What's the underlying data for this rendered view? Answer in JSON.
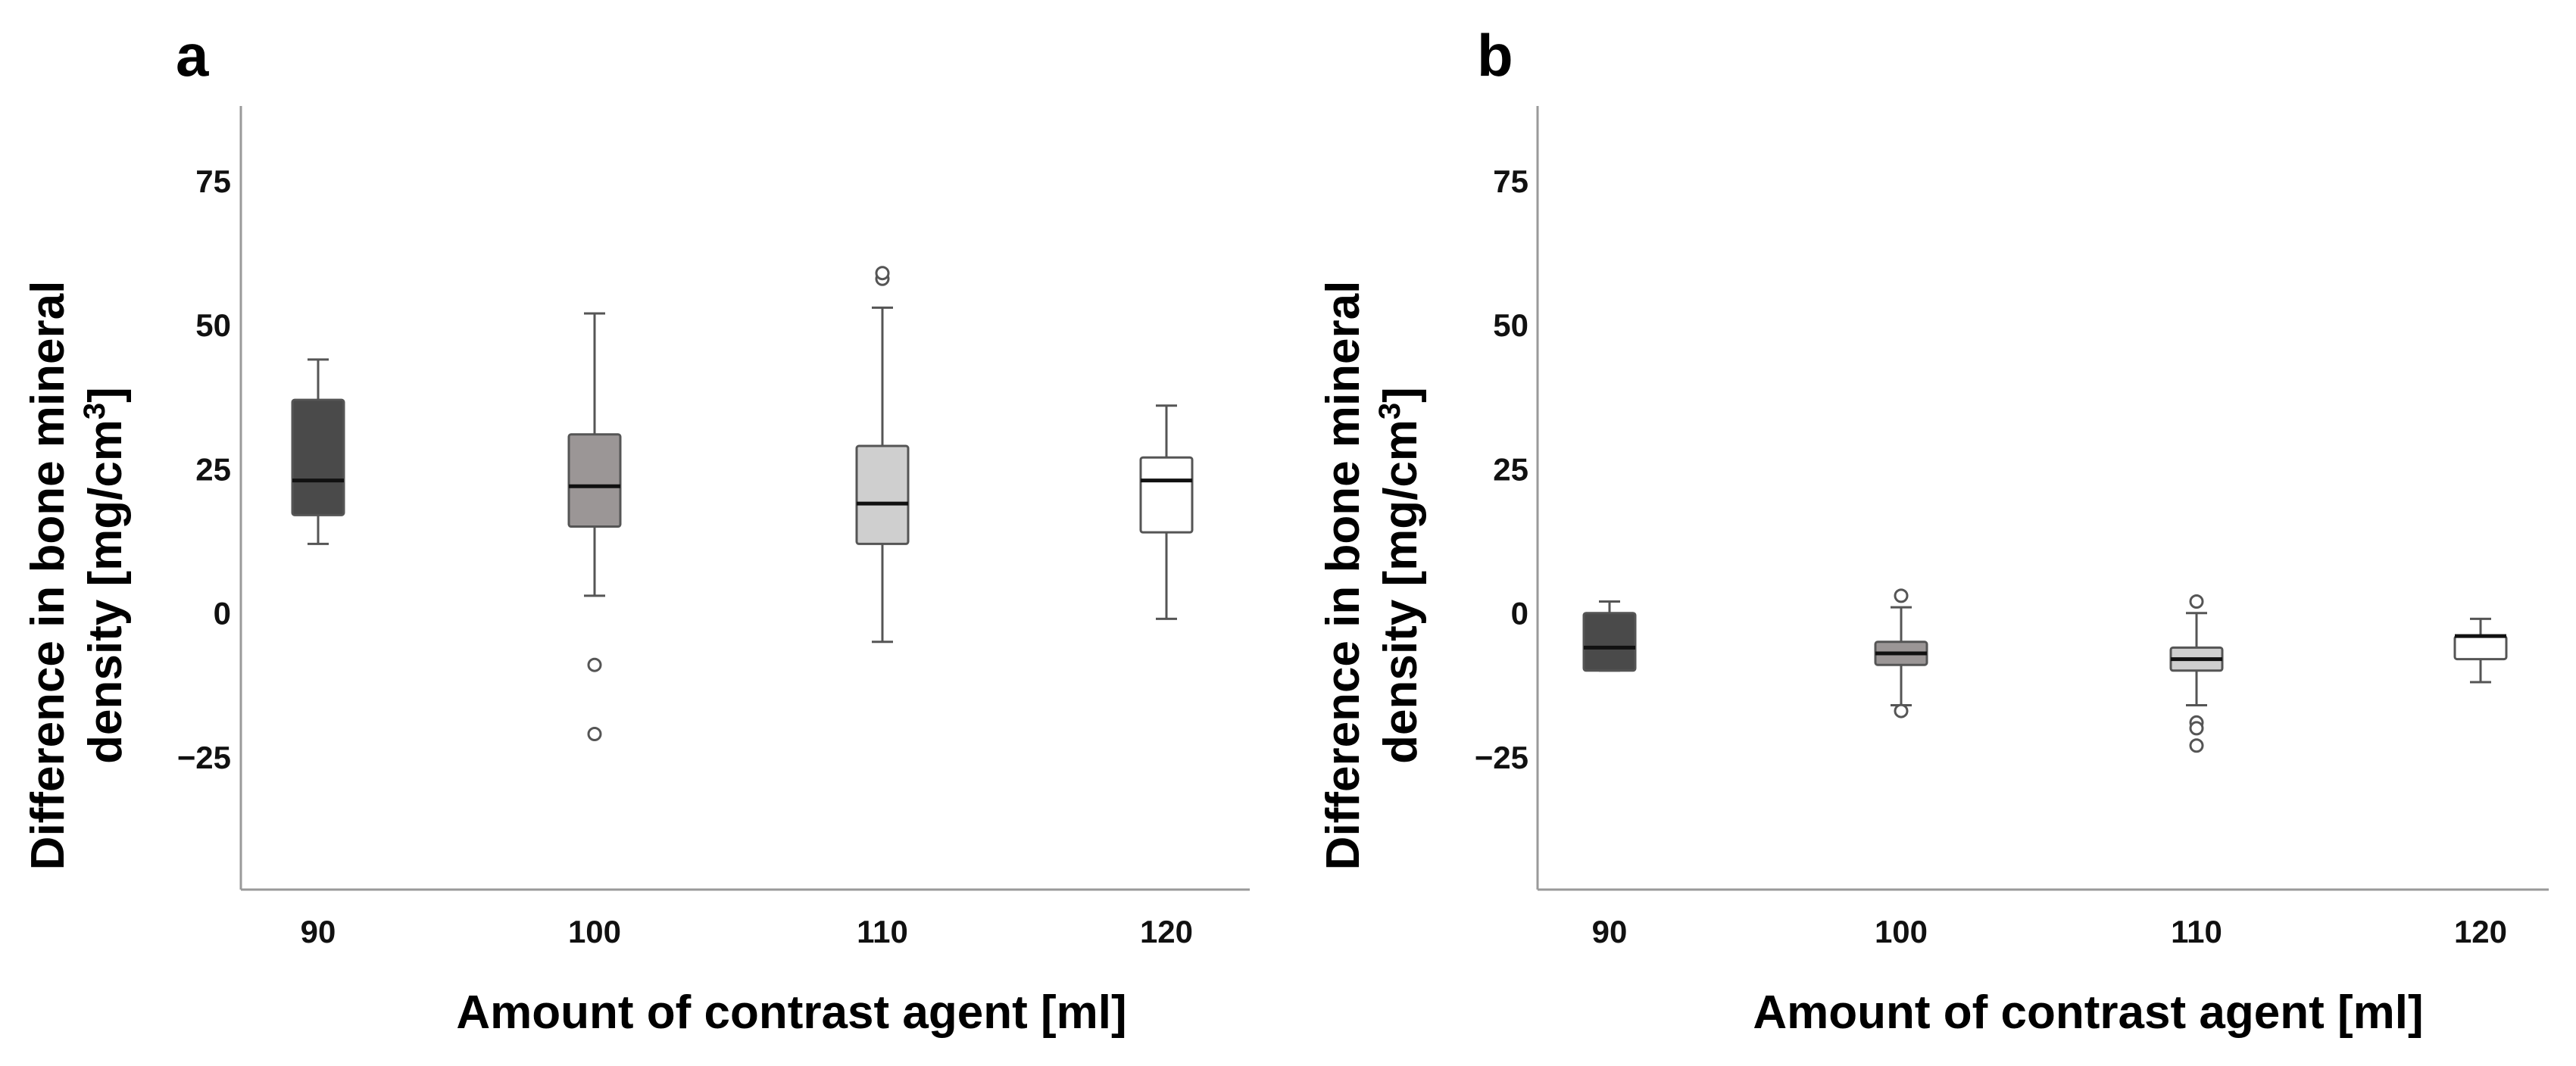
{
  "chart_data": [
    {
      "type": "box",
      "panel_label": "a",
      "xlabel": "Amount of contrast agent [ml]",
      "ylabel_line1": "Difference in bone mineral",
      "ylabel_line2_prefix": "density [mg/cm",
      "ylabel_line2_sup": "3",
      "ylabel_line2_suffix": "]",
      "ylim": [
        -48,
        88
      ],
      "yticks": [
        75,
        50,
        25,
        0,
        -25
      ],
      "ytick_labels": [
        "75",
        "50",
        "25",
        "0",
        "−25"
      ],
      "categories": [
        "90",
        "100",
        "110",
        "120"
      ],
      "boxes": [
        {
          "category": "90",
          "min": 12,
          "q1": 17,
          "median": 23,
          "q3": 37,
          "max": 44,
          "outliers": [],
          "fill": "#4a4a4a",
          "median_color": "#111111"
        },
        {
          "category": "100",
          "min": 3,
          "q1": 15,
          "median": 22,
          "q3": 31,
          "max": 52,
          "outliers": [
            -9,
            -21
          ],
          "fill": "#9b9696",
          "median_color": "#111111"
        },
        {
          "category": "110",
          "min": -5,
          "q1": 12,
          "median": 19,
          "q3": 29,
          "max": 53,
          "outliers": [
            58,
            59
          ],
          "fill": "#cfcfcf",
          "median_color": "#111111"
        },
        {
          "category": "120",
          "min": -1,
          "q1": 14,
          "median": 23,
          "q3": 27,
          "max": 36,
          "outliers": [],
          "fill": "#ffffff",
          "median_color": "#111111"
        }
      ]
    },
    {
      "type": "box",
      "panel_label": "b",
      "xlabel": "Amount of contrast agent [ml]",
      "ylabel_line1": "Difference in bone mineral",
      "ylabel_line2_prefix": "density [mg/cm",
      "ylabel_line2_sup": "3",
      "ylabel_line2_suffix": "]",
      "ylim": [
        -48,
        88
      ],
      "yticks": [
        75,
        50,
        25,
        0,
        -25
      ],
      "ytick_labels": [
        "75",
        "50",
        "25",
        "0",
        "−25"
      ],
      "categories": [
        "90",
        "100",
        "110",
        "120"
      ],
      "boxes": [
        {
          "category": "90",
          "min": -10,
          "q1": -10,
          "median": -6,
          "q3": 0,
          "max": 2,
          "outliers": [],
          "fill": "#4a4a4a",
          "median_color": "#111111"
        },
        {
          "category": "100",
          "min": -16,
          "q1": -9,
          "median": -7,
          "q3": -5,
          "max": 1,
          "outliers": [
            3,
            -17
          ],
          "fill": "#9b9696",
          "median_color": "#111111"
        },
        {
          "category": "110",
          "min": -16,
          "q1": -10,
          "median": -8,
          "q3": -6,
          "max": 0,
          "outliers": [
            2,
            -19,
            -20,
            -23
          ],
          "fill": "#cfcfcf",
          "median_color": "#111111"
        },
        {
          "category": "120",
          "min": -12,
          "q1": -8,
          "median": -4,
          "q3": -4,
          "max": -1,
          "outliers": [],
          "fill": "#ffffff",
          "median_color": "#111111"
        }
      ]
    }
  ]
}
